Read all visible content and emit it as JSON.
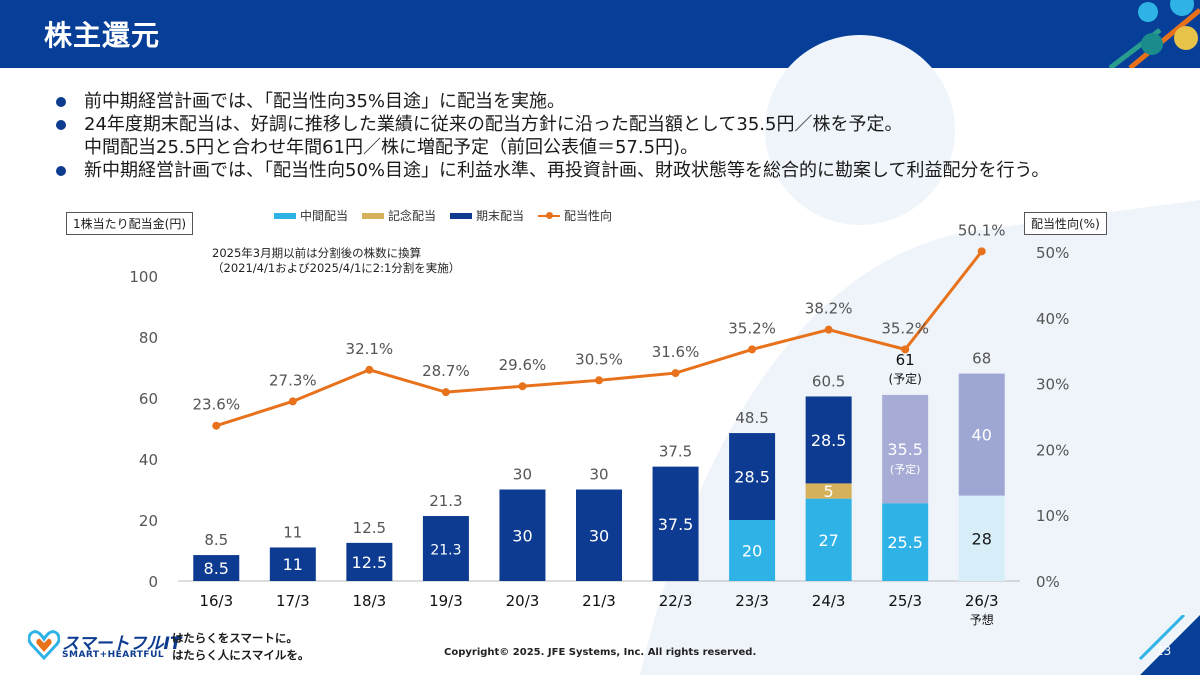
{
  "slide": {
    "title": "株主還元",
    "page_number": "23",
    "copyright": "Copyright© 2025. JFE Systems, Inc. All rights reserved."
  },
  "bullets": [
    {
      "text": "前中期経営計画では、「配当性向35%目途」に配当を実施。"
    },
    {
      "text": "24年度期末配当は、好調に推移した業績に従来の配当方針に沿った配当額として35.5円／株を予定。",
      "sub": "中間配当25.5円と合わせ年間61円／株に増配予定（前回公表値＝57.5円)。"
    },
    {
      "text": "新中期経営計画では、「配当性向50%目途」に利益水準、再投資計画、財政状態等を総合的に勘案して利益配分を行う。"
    }
  ],
  "footer": {
    "brand": "スマートフルIT",
    "brand_sub": "SMART+HEARTFUL",
    "slogan_1": "はたらくをスマートに。",
    "slogan_2": "はたらく人にスマイルを。"
  },
  "chart_data": {
    "type": "bar",
    "categories": [
      "16/3",
      "17/3",
      "18/3",
      "19/3",
      "20/3",
      "21/3",
      "22/3",
      "23/3",
      "24/3",
      "25/3",
      "26/3"
    ],
    "category_sublabels": [
      "",
      "",
      "",
      "",
      "",
      "",
      "",
      "",
      "",
      "",
      "予想"
    ],
    "ylabel_left": "1株当たり配当金(円)",
    "ylabel_right": "配当性向(%)",
    "ylim_left": [
      0,
      100
    ],
    "yticks_left": [
      0,
      20,
      40,
      60,
      80,
      100
    ],
    "ylim_right": [
      0,
      50
    ],
    "yticks_right": [
      "0%",
      "10%",
      "20%",
      "30%",
      "40%",
      "50%"
    ],
    "note": [
      "2025年3月期以前は分割後の株数に換算",
      "（2021/4/1および2025/4/1に2:1分割を実施）"
    ],
    "legend": [
      "中間配当",
      "記念配当",
      "期末配当",
      "配当性向"
    ],
    "series": [
      {
        "name": "中間配当",
        "values": [
          0,
          0,
          0,
          0,
          0,
          0,
          0,
          20,
          27,
          25.5,
          28
        ],
        "labels": [
          "",
          "",
          "",
          "",
          "",
          "",
          "",
          "20",
          "27",
          "25.5",
          "28"
        ]
      },
      {
        "name": "記念配当",
        "values": [
          0,
          0,
          0,
          0,
          0,
          0,
          0,
          0,
          5,
          0,
          0
        ],
        "labels": [
          "",
          "",
          "",
          "",
          "",
          "",
          "",
          "",
          "5",
          "",
          ""
        ]
      },
      {
        "name": "期末配当",
        "values": [
          8.5,
          11,
          12.5,
          21.3,
          30,
          30,
          37.5,
          28.5,
          28.5,
          35.5,
          40
        ],
        "labels": [
          "8.5",
          "11",
          "12.5",
          "21.3",
          "30",
          "30",
          "37.5",
          "28.5",
          "28.5",
          "35.5",
          "40"
        ]
      }
    ],
    "forecast_tag": "(予定)",
    "totals": [
      "8.5",
      "11",
      "12.5",
      "21.3",
      "30",
      "30",
      "37.5",
      "48.5",
      "60.5",
      "61",
      "68"
    ],
    "payout_ratio": {
      "name": "配当性向",
      "values": [
        23.6,
        27.3,
        32.1,
        28.7,
        29.6,
        30.5,
        31.6,
        35.2,
        38.2,
        35.2,
        50.1
      ],
      "labels": [
        "23.6%",
        "27.3%",
        "32.1%",
        "28.7%",
        "29.6%",
        "30.5%",
        "31.6%",
        "35.2%",
        "38.2%",
        "35.2%",
        "50.1%"
      ]
    },
    "colors": {
      "interim": "#2fb2e6",
      "commemorative": "#d4b15a",
      "year_end": "#0c3b91",
      "ratio": "#e8721c",
      "plan_interim": "#2fb2e6",
      "plan_year_end": "#a7acd6",
      "forecast_interim": "#d7eef9",
      "forecast_year_end": "#9ea6d3"
    }
  }
}
